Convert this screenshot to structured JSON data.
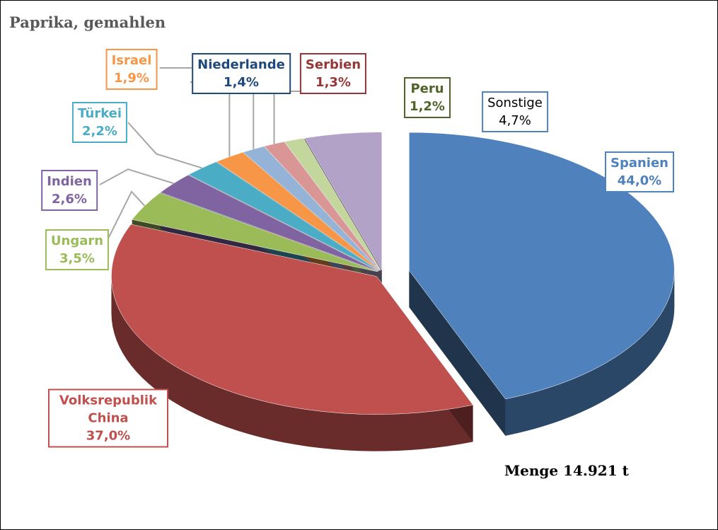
{
  "chart_data": {
    "type": "pie",
    "title": "Paprika, gemahlen",
    "categories": [
      "Spanien",
      "Volksrepublik China",
      "Ungarn",
      "Indien",
      "Türkei",
      "Israel",
      "Niederlande",
      "Serbien",
      "Peru",
      "Sonstige"
    ],
    "values": [
      44.0,
      37.0,
      3.5,
      2.6,
      2.2,
      1.9,
      1.4,
      1.3,
      1.2,
      4.7
    ],
    "value_labels": [
      "44,0%",
      "37,0%",
      "3,5%",
      "2,6%",
      "2,2%",
      "1,9%",
      "1,4%",
      "1,3%",
      "1,2%",
      "4,7%"
    ],
    "colors": [
      "#4f81bd",
      "#c0504d",
      "#9bbb59",
      "#8064a2",
      "#4bacc6",
      "#f79646",
      "#95b3d7",
      "#d99694",
      "#c3d69b",
      "#b3a2c7"
    ],
    "annotation": "Menge 14.921 t"
  }
}
